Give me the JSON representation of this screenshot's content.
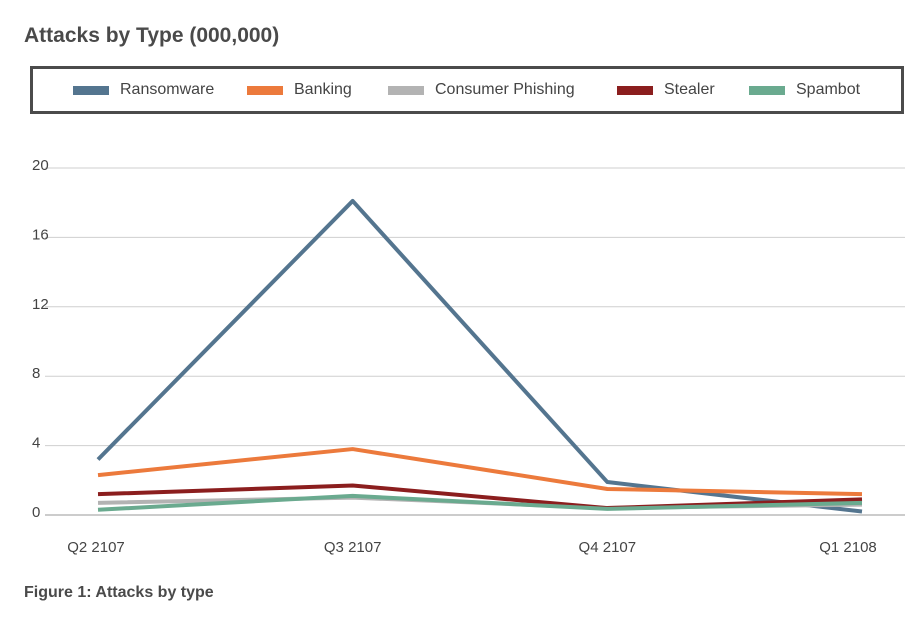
{
  "title": "Attacks by Type (000,000)",
  "caption": "Figure 1: Attacks by type",
  "chart_data": {
    "type": "line",
    "categories": [
      "Q2 2107",
      "Q3 2107",
      "Q4 2107",
      "Q1 2108"
    ],
    "ylim": [
      0,
      20
    ],
    "yticks": [
      0,
      4,
      8,
      12,
      16,
      20
    ],
    "grid": true,
    "legend_position": "top",
    "series": [
      {
        "name": "Ransomware",
        "color": "#54758f",
        "values": [
          3.2,
          18.1,
          1.9,
          0.2
        ]
      },
      {
        "name": "Banking",
        "color": "#ec7a3c",
        "values": [
          2.3,
          3.8,
          1.5,
          1.2
        ]
      },
      {
        "name": "Consumer Phishing",
        "color": "#b3b3b3",
        "values": [
          0.7,
          1.0,
          0.4,
          0.6
        ]
      },
      {
        "name": "Stealer",
        "color": "#8b1e1e",
        "values": [
          1.2,
          1.7,
          0.4,
          0.9
        ]
      },
      {
        "name": "Spambot",
        "color": "#6aaa8f",
        "values": [
          0.3,
          1.1,
          0.35,
          0.7
        ]
      }
    ]
  }
}
